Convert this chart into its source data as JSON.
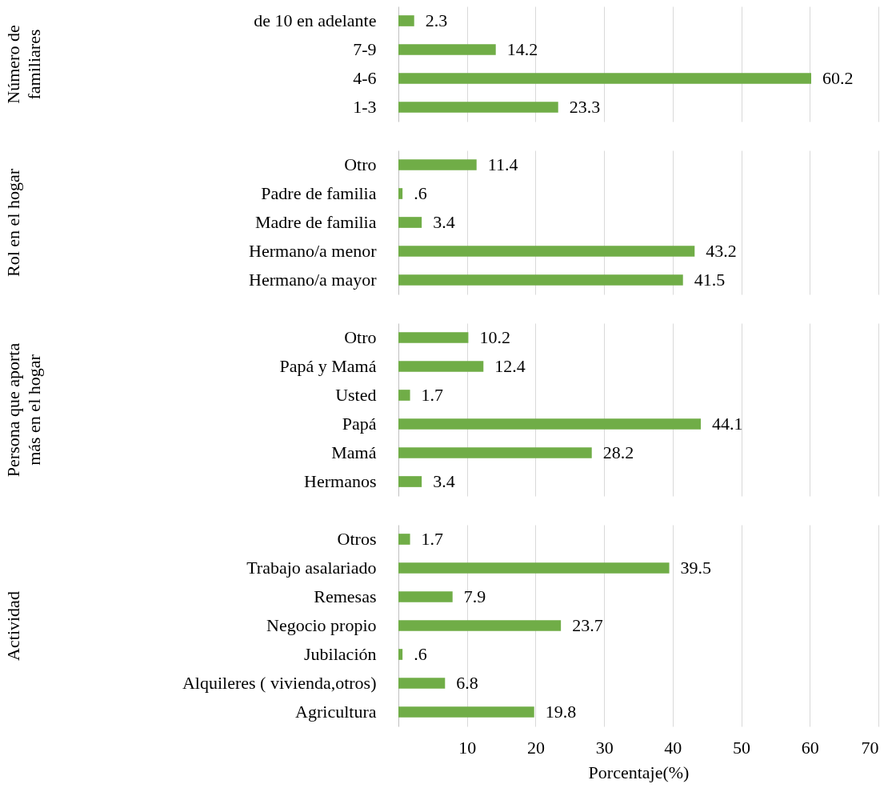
{
  "chart_data": [
    {
      "type": "bar",
      "orientation": "horizontal",
      "ylabel": "Número de familiares",
      "categories": [
        "de 10 en adelante",
        "7-9",
        "4-6",
        "1-3"
      ],
      "values": [
        2.3,
        14.2,
        60.2,
        23.3
      ],
      "value_labels": [
        "2.3",
        "14.2",
        "60.2",
        "23.3"
      ],
      "color": "#70ad47",
      "xlim": [
        0,
        70
      ],
      "xticks": [
        10,
        20,
        30,
        40,
        50,
        60,
        70
      ],
      "grid": "x",
      "tick_labels": "y"
    },
    {
      "type": "bar",
      "orientation": "horizontal",
      "ylabel": "Rol en el hogar",
      "categories": [
        "Otro",
        "Padre de familia",
        "Madre de familia",
        "Hermano/a menor",
        "Hermano/a mayor"
      ],
      "values": [
        11.4,
        0.6,
        3.4,
        43.2,
        41.5
      ],
      "value_labels": [
        "11.4",
        ".6",
        "3.4",
        "43.2",
        "41.5"
      ],
      "color": "#70ad47",
      "xlim": [
        0,
        70
      ],
      "xticks": [
        10,
        20,
        30,
        40,
        50,
        60,
        70
      ],
      "grid": "x",
      "tick_labels": "y"
    },
    {
      "type": "bar",
      "orientation": "horizontal",
      "ylabel": "Persona que aporta más en el hogar",
      "categories": [
        "Otro",
        "Papá y Mamá",
        "Usted",
        "Papá",
        "Mamá",
        "Hermanos"
      ],
      "values": [
        10.2,
        12.4,
        1.7,
        44.1,
        28.2,
        3.4
      ],
      "value_labels": [
        "10.2",
        "12.4",
        "1.7",
        "44.1",
        "28.2",
        "3.4"
      ],
      "color": "#70ad47",
      "xlim": [
        0,
        70
      ],
      "xticks": [
        10,
        20,
        30,
        40,
        50,
        60,
        70
      ],
      "grid": "x",
      "tick_labels": "y"
    },
    {
      "type": "bar",
      "orientation": "horizontal",
      "ylabel": "Actividad",
      "xlabel": "Porcentaje(%)",
      "categories": [
        "Otros",
        "Trabajo asalariado",
        "Remesas",
        "Negocio propio",
        "Jubilación",
        "Alquileres ( vivienda,otros)",
        "Agricultura"
      ],
      "values": [
        1.7,
        39.5,
        7.9,
        23.7,
        0.6,
        6.8,
        19.8
      ],
      "value_labels": [
        "1.7",
        "39.5",
        "7.9",
        "23.7",
        ".6",
        "6.8",
        "19.8"
      ],
      "color": "#70ad47",
      "xlim": [
        0,
        70
      ],
      "xticks": [
        10,
        20,
        30,
        40,
        50,
        60,
        70
      ],
      "grid": "x"
    }
  ]
}
